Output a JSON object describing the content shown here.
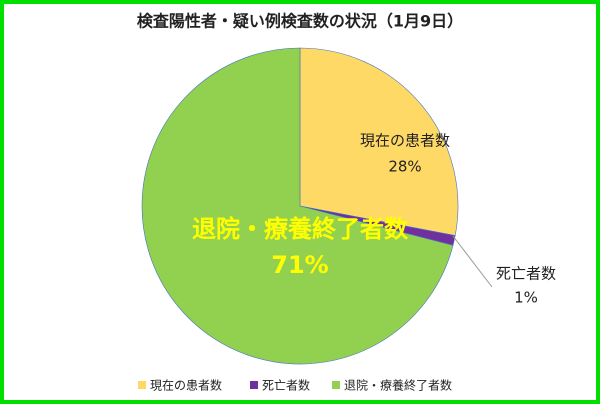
{
  "chart_data": {
    "type": "pie",
    "title": "検査陽性者・疑い例検査数の状況（1月9日）",
    "categories": [
      "現在の患者数",
      "死亡者数",
      "退院・療養終了者数"
    ],
    "values": [
      28,
      1,
      71
    ],
    "value_labels": [
      "28%",
      "1%",
      "71%"
    ],
    "colors": [
      "#ffd966",
      "#7030a0",
      "#92d050"
    ],
    "legend": "bottom"
  }
}
